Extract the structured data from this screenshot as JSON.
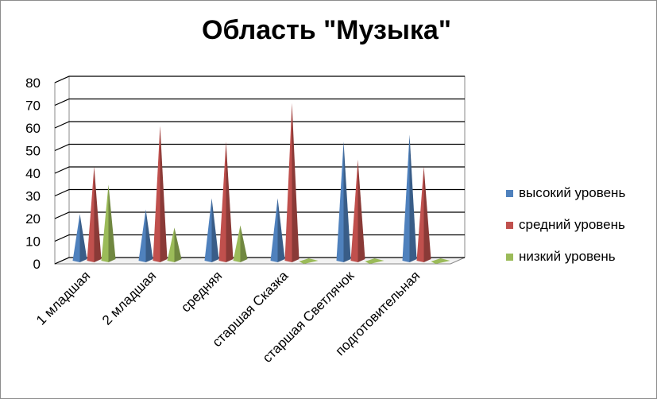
{
  "chart_data": {
    "type": "bar",
    "title": "Область \"Музыка\"",
    "categories": [
      "1 младшая",
      "2 младшая",
      "средняя",
      "старшая Сказка",
      "старшая Светлячок",
      "подготовительная"
    ],
    "series": [
      {
        "name": "высокий уровень",
        "color": "#4f81bd",
        "values": [
          22,
          24,
          29,
          29,
          54,
          57
        ]
      },
      {
        "name": "средний уровень",
        "color": "#c0504d",
        "values": [
          43,
          61,
          54,
          71,
          46,
          43
        ]
      },
      {
        "name": "низкий уровень",
        "color": "#9bbb59",
        "values": [
          35,
          16,
          17,
          0,
          0,
          0
        ]
      }
    ],
    "ylim": [
      0,
      80
    ],
    "yticks": [
      0,
      10,
      20,
      30,
      40,
      50,
      60,
      70,
      80
    ],
    "grid": true,
    "legend_position": "right"
  }
}
